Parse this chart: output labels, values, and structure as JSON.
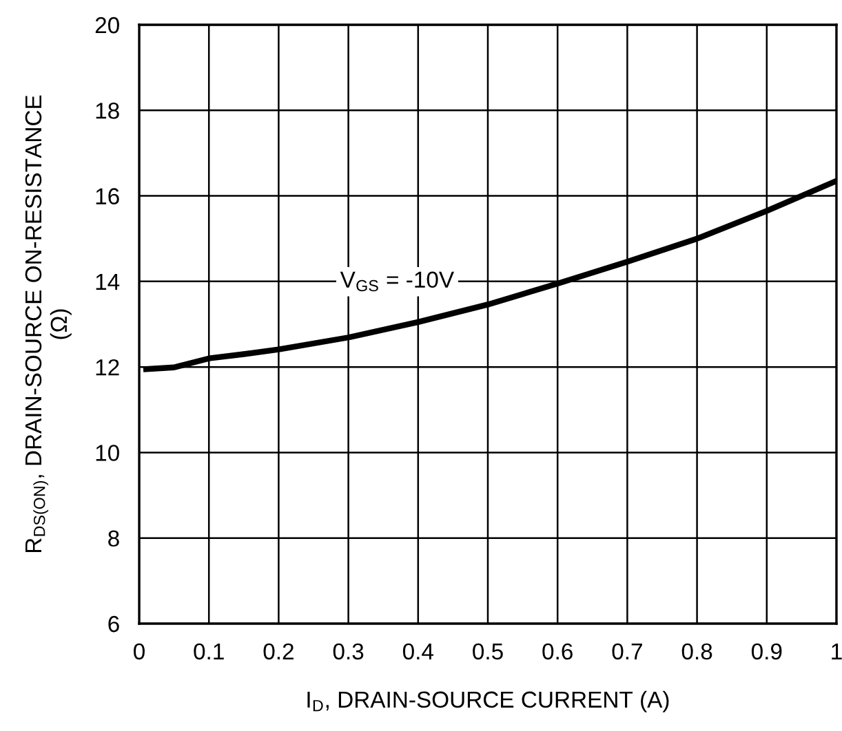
{
  "chart_data": {
    "type": "line",
    "xlabel": "I$_{D}$, DRAIN-SOURCE CURRENT (A)",
    "ylabel": "R$_{DS(ON)}$, DRAIN-SOURCE ON-RESISTANCE\n(Ω)",
    "x": [
      0.01,
      0.05,
      0.1,
      0.15,
      0.2,
      0.3,
      0.4,
      0.5,
      0.6,
      0.7,
      0.8,
      0.9,
      1.0
    ],
    "series": [
      {
        "color": "#000000",
        "values": [
          11.95,
          11.99,
          12.2,
          12.3,
          12.41,
          12.69,
          13.05,
          13.46,
          13.95,
          14.46,
          15.0,
          15.65,
          16.35
        ]
      }
    ],
    "xlim": [
      0,
      1
    ],
    "xticks": [
      0,
      0.1,
      0.2,
      0.3,
      0.4,
      0.5,
      0.6,
      0.7,
      0.8,
      0.9,
      1
    ],
    "ylim": [
      6,
      20
    ],
    "yticks": [
      6,
      8,
      10,
      12,
      14,
      16,
      18,
      20
    ],
    "grid": true,
    "marker": "none",
    "line_style": "solid",
    "annotations": [
      "V$_{GS}$ = -10V"
    ]
  }
}
